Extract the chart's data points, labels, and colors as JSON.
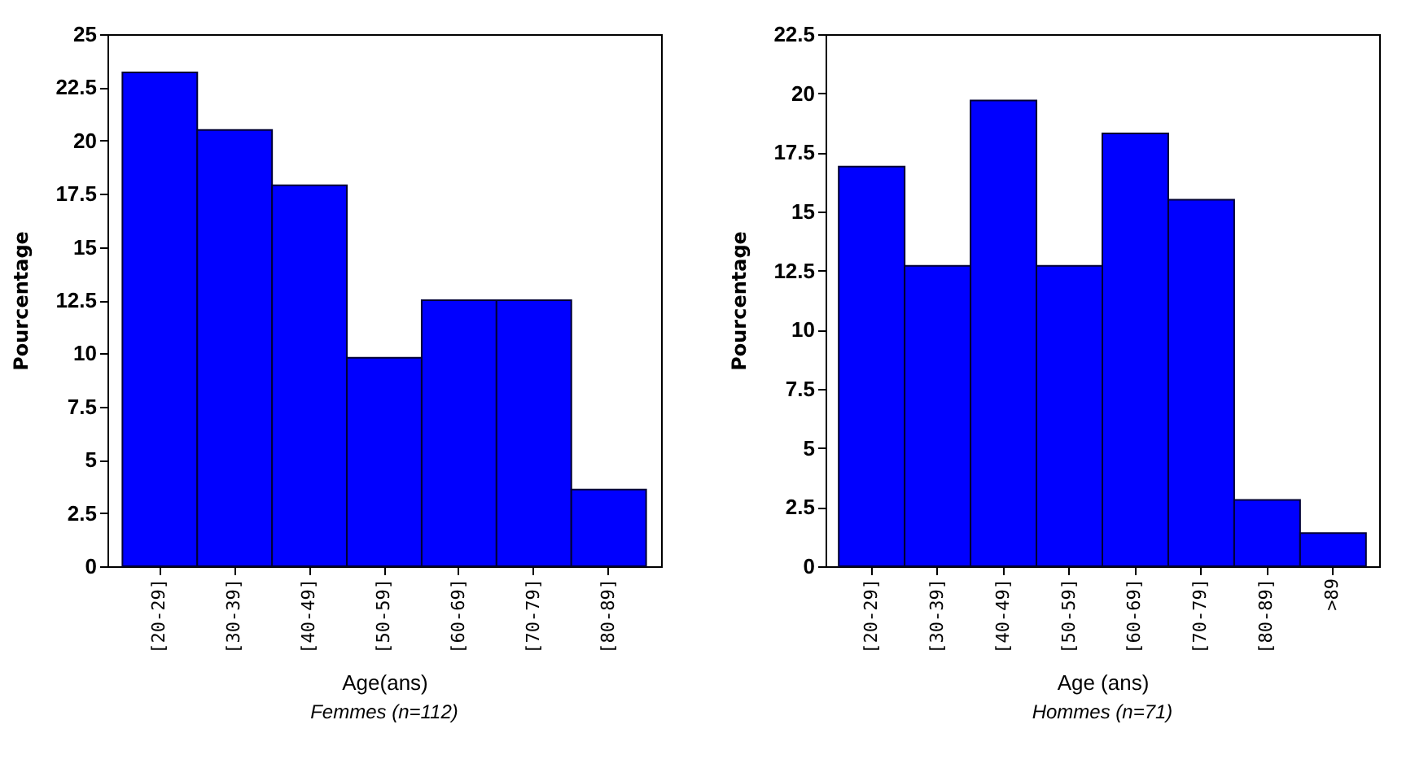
{
  "chart_data": [
    {
      "type": "bar",
      "categories": [
        "[20-29]",
        "[30-39]",
        "[40-49]",
        "[50-59]",
        "[60-69]",
        "[70-79]",
        "[80-89]"
      ],
      "values": [
        23.2,
        20.5,
        17.9,
        9.8,
        12.5,
        12.5,
        3.6
      ],
      "color": "#0000ff",
      "ylim": [
        0,
        25
      ],
      "yticks": [
        0,
        2.5,
        5,
        7.5,
        10,
        12.5,
        15,
        17.5,
        20,
        22.5,
        25
      ],
      "xlabel": "Age(ans)",
      "ylabel": "Pourcentage",
      "annotations": [
        "Femmes (n=112)"
      ],
      "grid": false
    },
    {
      "type": "bar",
      "categories": [
        "[20-29]",
        "[30-39]",
        "[40-49]",
        "[50-59]",
        "[60-69]",
        "[70-79]",
        "[80-89]",
        ">89"
      ],
      "values": [
        16.9,
        12.7,
        19.7,
        12.7,
        18.3,
        15.5,
        2.8,
        1.4
      ],
      "color": "#0000ff",
      "ylim": [
        0,
        22.5
      ],
      "yticks": [
        0,
        2.5,
        5,
        7.5,
        10,
        12.5,
        15,
        17.5,
        20,
        22.5
      ],
      "xlabel": "Age (ans)",
      "ylabel": "Pourcentage",
      "annotations": [
        "Hommes (n=71)"
      ],
      "grid": false
    }
  ]
}
